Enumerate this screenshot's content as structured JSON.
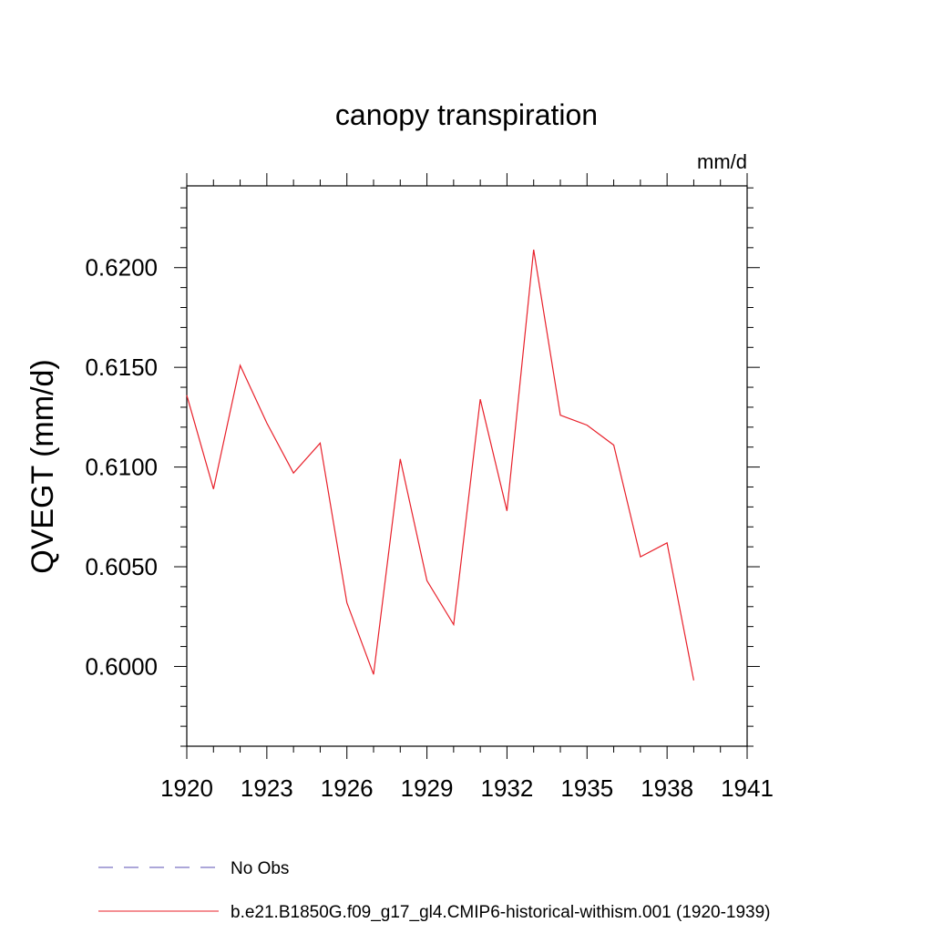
{
  "chart_data": {
    "type": "line",
    "title": "canopy transpiration",
    "units": "mm/d",
    "ylabel": "QVEGT  (mm/d)",
    "xlabel": "",
    "xlim": [
      1920,
      1941
    ],
    "ylim": [
      0.596,
      0.6241
    ],
    "xticks": [
      "1920",
      "1923",
      "1926",
      "1929",
      "1932",
      "1935",
      "1938",
      "1941"
    ],
    "yticks": [
      "0.6000",
      "0.6050",
      "0.6100",
      "0.6150",
      "0.6200"
    ],
    "grid": false,
    "legend_position": "bottom",
    "series": [
      {
        "name": "b.e21.B1850G.f09_g17_gl4.CMIP6-historical-withism.001 (1920-1939)",
        "color": "#e8202a",
        "x": [
          1920,
          1921,
          1922,
          1923,
          1924,
          1925,
          1926,
          1927,
          1928,
          1929,
          1930,
          1931,
          1932,
          1933,
          1934,
          1935,
          1936,
          1937,
          1938,
          1939
        ],
        "y": [
          0.6136,
          0.6089,
          0.6151,
          0.6122,
          0.6097,
          0.6112,
          0.6032,
          0.5996,
          0.6104,
          0.6043,
          0.6021,
          0.6134,
          0.6078,
          0.6209,
          0.6126,
          0.6121,
          0.6111,
          0.6055,
          0.6062,
          0.5993
        ]
      }
    ],
    "legend": [
      {
        "label": "No Obs",
        "color": "#5a4fb3",
        "style": "dashed"
      },
      {
        "label": "b.e21.B1850G.f09_g17_gl4.CMIP6-historical-withism.001 (1920-1939)",
        "color": "#e8202a",
        "style": "solid"
      }
    ]
  }
}
